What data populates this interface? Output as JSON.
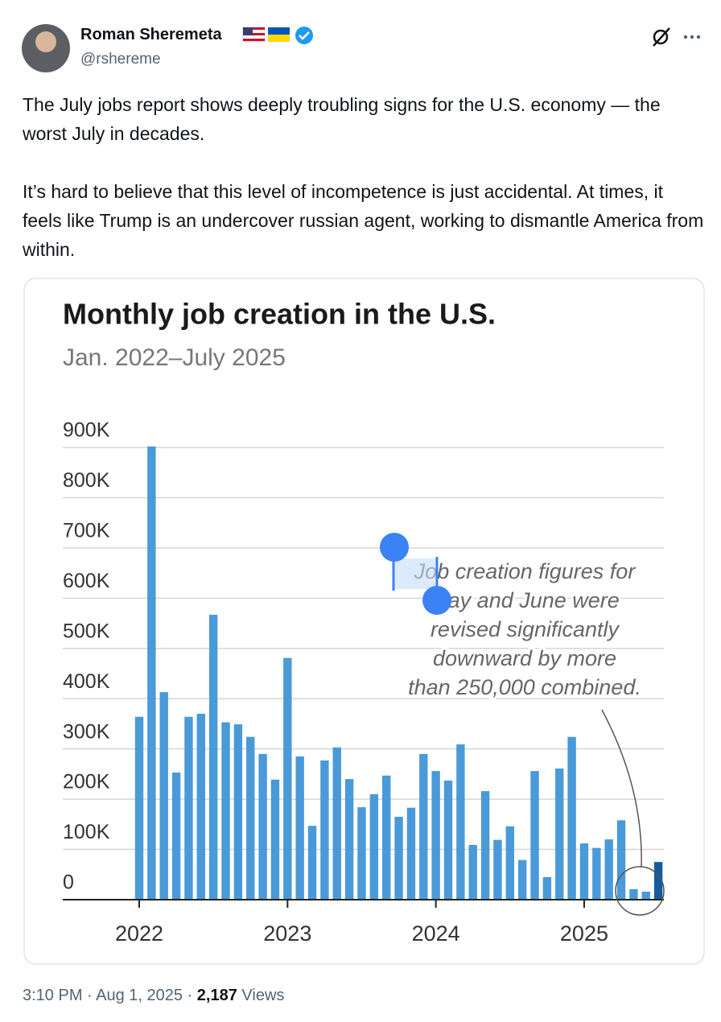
{
  "author": {
    "name": "Roman Sheremeta",
    "handle": "@rshereme"
  },
  "body": [
    "The July jobs report shows deeply troubling signs for the U.S. economy — the worst July in decades.",
    "It’s hard to believe that this level of incompetence is just accidental. At times, it feels like Trump is an undercover russian agent, working to dismantle America from within."
  ],
  "footer": {
    "time": "3:10 PM · Aug 1, 2025 · ",
    "views": "2,187",
    "views_label": "Views"
  },
  "chart_data": {
    "type": "bar",
    "title": "Monthly job creation in the U.S.",
    "subtitle": "Jan. 2022–July 2025",
    "categories": [
      "2022",
      null,
      null,
      null,
      null,
      null,
      null,
      null,
      null,
      null,
      null,
      null,
      "2023",
      null,
      null,
      null,
      null,
      null,
      null,
      null,
      null,
      null,
      null,
      null,
      "2024",
      null,
      null,
      null,
      null,
      null,
      null,
      null,
      null,
      null,
      null,
      null,
      "2025",
      null,
      null,
      null,
      null,
      null,
      null
    ],
    "values": [
      364000,
      902000,
      413000,
      253000,
      364000,
      370000,
      567000,
      353000,
      349000,
      324000,
      290000,
      239000,
      481000,
      285000,
      147000,
      277000,
      303000,
      240000,
      184000,
      210000,
      247000,
      165000,
      183000,
      290000,
      256000,
      237000,
      309000,
      109000,
      216000,
      119000,
      146000,
      79000,
      256000,
      45000,
      261000,
      324000,
      112000,
      103000,
      120000,
      158000,
      21000,
      16000,
      75000
    ],
    "color": "#4a9ad9",
    "last_color": "#145c9e",
    "ylim": [
      0,
      900000
    ],
    "yticks": [
      0,
      {
        "value": 100000,
        "label": "100K"
      },
      {
        "value": 200000,
        "label": "200K"
      },
      {
        "value": 300000,
        "label": "300K"
      },
      {
        "value": 400000,
        "label": "400K"
      },
      {
        "value": 500000,
        "label": "500K"
      },
      {
        "value": 600000,
        "label": "600K"
      },
      {
        "value": 700000,
        "label": "700K"
      },
      {
        "value": 800000,
        "label": "800K"
      },
      {
        "value": 900000,
        "label": "900K"
      }
    ],
    "grid": true,
    "annotation": [
      "Job creation figures for",
      "May and June were",
      "revised significantly",
      "downward by more",
      "than 250,000 combined."
    ]
  }
}
